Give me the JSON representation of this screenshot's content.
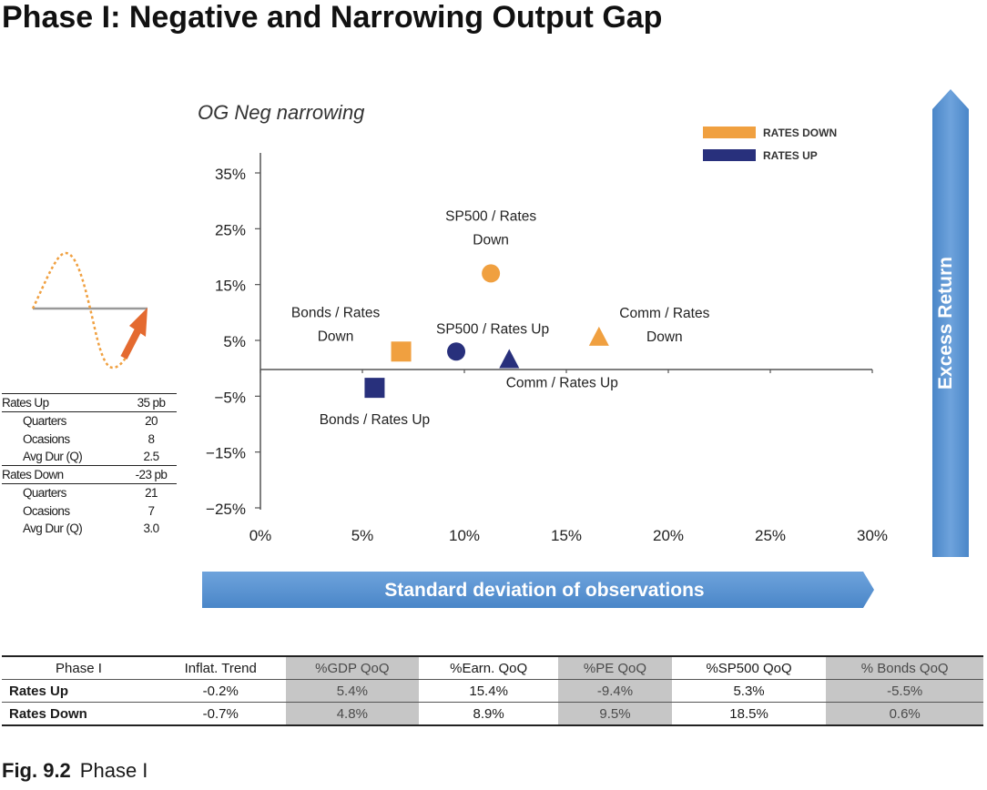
{
  "page_title": "Phase I: Negative and Narrowing Output Gap",
  "chart_data": {
    "type": "scatter",
    "title": "OG Neg narrowing",
    "xlabel": "Standard deviation of observations",
    "ylabel": "Excess Return",
    "xlim": [
      0,
      30
    ],
    "ylim": [
      -25,
      35
    ],
    "x_ticks": [
      "0%",
      "5%",
      "10%",
      "15%",
      "20%",
      "25%",
      "30%"
    ],
    "y_ticks": [
      "35%",
      "25%",
      "15%",
      "5%",
      "-5%",
      "-15%",
      "-25%"
    ],
    "legend": [
      "RATES DOWN",
      "RATES UP"
    ],
    "legend_position": "top-right",
    "colors": {
      "rates_down": "#f0a040",
      "rates_up": "#28307c"
    },
    "series": [
      {
        "name": "RATES DOWN",
        "points": [
          {
            "label": "Bonds / Rates Down",
            "x": 6.9,
            "y": 3,
            "marker": "square"
          },
          {
            "label": "SP500 / Rates Down",
            "x": 11.3,
            "y": 17,
            "marker": "circle"
          },
          {
            "label": "Comm / Rates Down",
            "x": 16.6,
            "y": 5.5,
            "marker": "triangle"
          }
        ]
      },
      {
        "name": "RATES UP",
        "points": [
          {
            "label": "Bonds / Rates Up",
            "x": 5.6,
            "y": -3.5,
            "marker": "square"
          },
          {
            "label": "SP500 / Rates Up",
            "x": 9.6,
            "y": 3,
            "marker": "circle"
          },
          {
            "label": "Comm / Rates Up",
            "x": 12.2,
            "y": 1.5,
            "marker": "triangle"
          }
        ]
      }
    ]
  },
  "stats": {
    "rates_up": {
      "label": "Rates Up",
      "value": "35 pb",
      "rows": [
        {
          "label": "Quarters",
          "value": "20"
        },
        {
          "label": "Ocasions",
          "value": "8"
        },
        {
          "label": "Avg Dur (Q)",
          "value": "2.5"
        }
      ]
    },
    "rates_down": {
      "label": "Rates Down",
      "value": "-23 pb",
      "rows": [
        {
          "label": "Quarters",
          "value": "21"
        },
        {
          "label": "Ocasions",
          "value": "7"
        },
        {
          "label": "Avg Dur (Q)",
          "value": "3.0"
        }
      ]
    }
  },
  "table": {
    "headers": [
      "Phase I",
      "Inflat. Trend",
      "%GDP QoQ",
      "%Earn. QoQ",
      "%PE QoQ",
      "%SP500 QoQ",
      "% Bonds QoQ"
    ],
    "rows": [
      [
        "Rates Up",
        "-0.2%",
        "5.4%",
        "15.4%",
        "-9.4%",
        "5.3%",
        "-5.5%"
      ],
      [
        "Rates Down",
        "-0.7%",
        "4.8%",
        "8.9%",
        "9.5%",
        "18.5%",
        "0.6%"
      ]
    ]
  },
  "caption": {
    "label": "Fig. 9.2",
    "text": "Phase I"
  }
}
